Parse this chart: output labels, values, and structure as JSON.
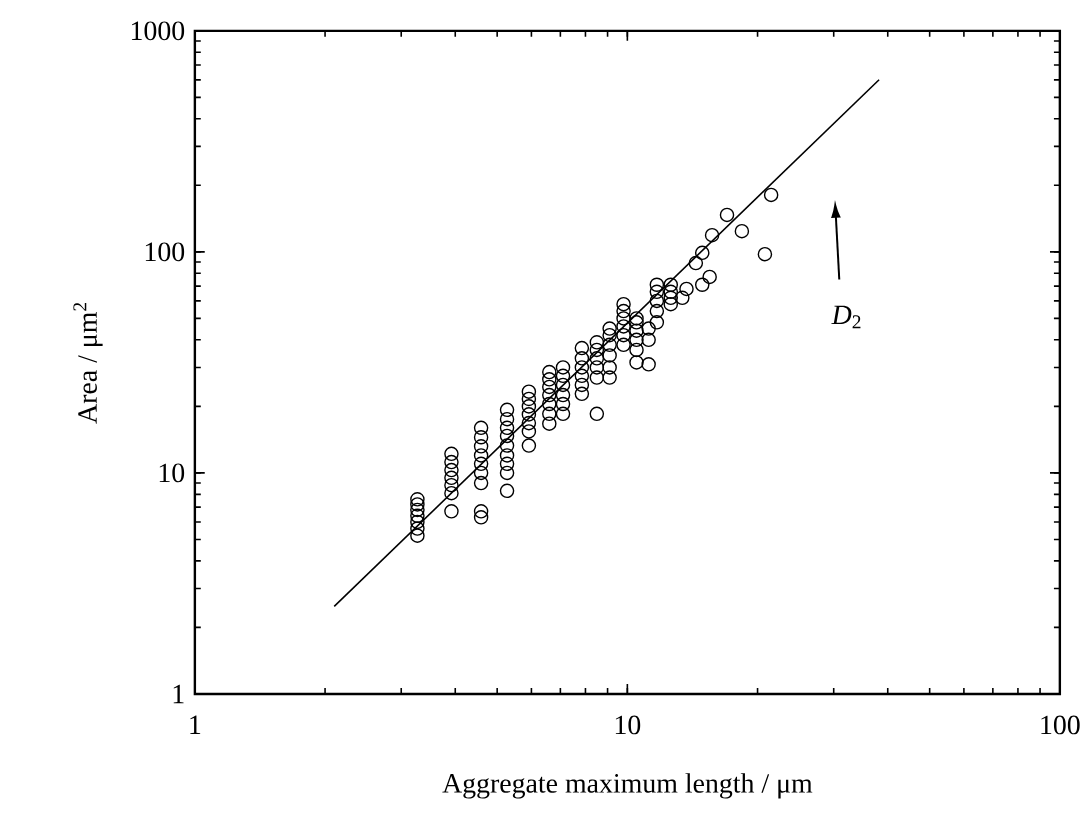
{
  "chart_data": {
    "type": "scatter",
    "xlabel": "Aggregate maximum length  /  μm",
    "ylabel": "Area  /  μm$^{2}$",
    "log": "xy",
    "xlim": [
      1,
      100
    ],
    "ylim": [
      1,
      1000
    ],
    "xticks": [
      1,
      10,
      100
    ],
    "yticks": [
      1,
      10,
      100,
      1000
    ],
    "grid": false,
    "marker": "circle",
    "series": [
      {
        "color": "#000000",
        "x": [
          3.27,
          3.27,
          3.27,
          3.27,
          3.27,
          3.27,
          3.27,
          3.92,
          3.92,
          3.92,
          3.92,
          3.92,
          3.92,
          3.92,
          4.59,
          4.59,
          4.59,
          4.59,
          4.59,
          4.59,
          4.59,
          4.59,
          4.59,
          5.27,
          5.27,
          5.27,
          5.27,
          5.27,
          5.27,
          5.27,
          5.27,
          5.27,
          5.92,
          5.92,
          5.92,
          5.92,
          5.92,
          5.92,
          5.92,
          6.6,
          6.6,
          6.6,
          6.6,
          6.6,
          6.6,
          6.6,
          7.1,
          7.1,
          7.1,
          7.1,
          7.1,
          7.1,
          7.85,
          7.85,
          7.85,
          7.85,
          7.85,
          7.85,
          8.5,
          8.5,
          8.5,
          8.5,
          8.5,
          8.5,
          9.1,
          9.1,
          9.1,
          9.1,
          9.1,
          9.1,
          9.8,
          9.8,
          9.8,
          9.8,
          9.8,
          9.8,
          10.5,
          10.5,
          10.5,
          10.5,
          10.5,
          10.5,
          11.2,
          11.2,
          11.2,
          11.7,
          11.7,
          11.7,
          11.7,
          11.7,
          12.6,
          12.6,
          12.6,
          12.6,
          13.4,
          13.7,
          14.4,
          14.9,
          14.9,
          15.5,
          15.7,
          17.0,
          18.4,
          20.8,
          21.5
        ],
        "values": [
          5.2,
          5.6,
          6.0,
          6.4,
          6.8,
          7.2,
          7.6,
          8.1,
          8.8,
          9.5,
          10.3,
          11.2,
          12.2,
          6.7,
          9,
          10,
          11,
          12,
          13.2,
          14.5,
          16,
          6.7,
          6.3,
          10,
          11,
          12,
          13.3,
          14.7,
          16,
          17.5,
          19.3,
          8.3,
          15.4,
          16.8,
          18.4,
          20,
          21.6,
          23.3,
          13.3,
          16.7,
          18.5,
          20.5,
          22.5,
          24.5,
          26.5,
          28.6,
          18.5,
          20.5,
          22.5,
          25,
          27.5,
          30,
          22.8,
          25,
          27.5,
          30,
          33,
          36.7,
          27,
          30,
          33,
          36,
          39,
          18.5,
          27,
          30,
          34,
          38,
          42,
          45,
          38,
          42,
          46,
          50,
          54,
          58,
          36,
          40,
          44,
          48,
          50,
          31.6,
          31,
          40,
          45,
          48,
          54,
          60,
          66,
          71,
          58,
          62,
          66,
          71,
          62,
          68,
          89,
          71,
          99,
          77,
          119,
          147,
          124,
          97.6,
          181
        ]
      },
      {
        "type": "line",
        "color": "#000000",
        "marker": "none",
        "x": [
          2.1,
          38.2
        ],
        "values": [
          2.49,
          601
        ]
      }
    ],
    "annotations": [
      "*D*$_{2}$"
    ]
  }
}
